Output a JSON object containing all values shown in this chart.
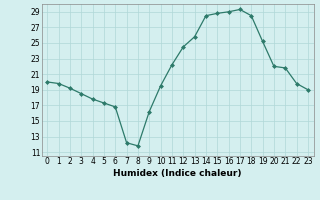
{
  "x": [
    0,
    1,
    2,
    3,
    4,
    5,
    6,
    7,
    8,
    9,
    10,
    11,
    12,
    13,
    14,
    15,
    16,
    17,
    18,
    19,
    20,
    21,
    22,
    23
  ],
  "y": [
    20.0,
    19.8,
    19.2,
    18.5,
    17.8,
    17.3,
    16.8,
    12.2,
    11.8,
    16.2,
    19.5,
    22.2,
    24.5,
    25.8,
    28.5,
    28.8,
    29.0,
    29.3,
    28.5,
    25.2,
    22.0,
    21.8,
    19.8,
    19.0
  ],
  "line_color": "#2d7a6a",
  "marker": "D",
  "marker_size": 2,
  "bg_color": "#d4efef",
  "grid_color": "#b0d8d8",
  "xlabel": "Humidex (Indice chaleur)",
  "xlim": [
    -0.5,
    23.5
  ],
  "ylim": [
    10.5,
    30.0
  ],
  "yticks": [
    11,
    13,
    15,
    17,
    19,
    21,
    23,
    25,
    27,
    29
  ],
  "xticks": [
    0,
    1,
    2,
    3,
    4,
    5,
    6,
    7,
    8,
    9,
    10,
    11,
    12,
    13,
    14,
    15,
    16,
    17,
    18,
    19,
    20,
    21,
    22,
    23
  ],
  "xlabel_fontsize": 6.5,
  "tick_fontsize": 5.5
}
